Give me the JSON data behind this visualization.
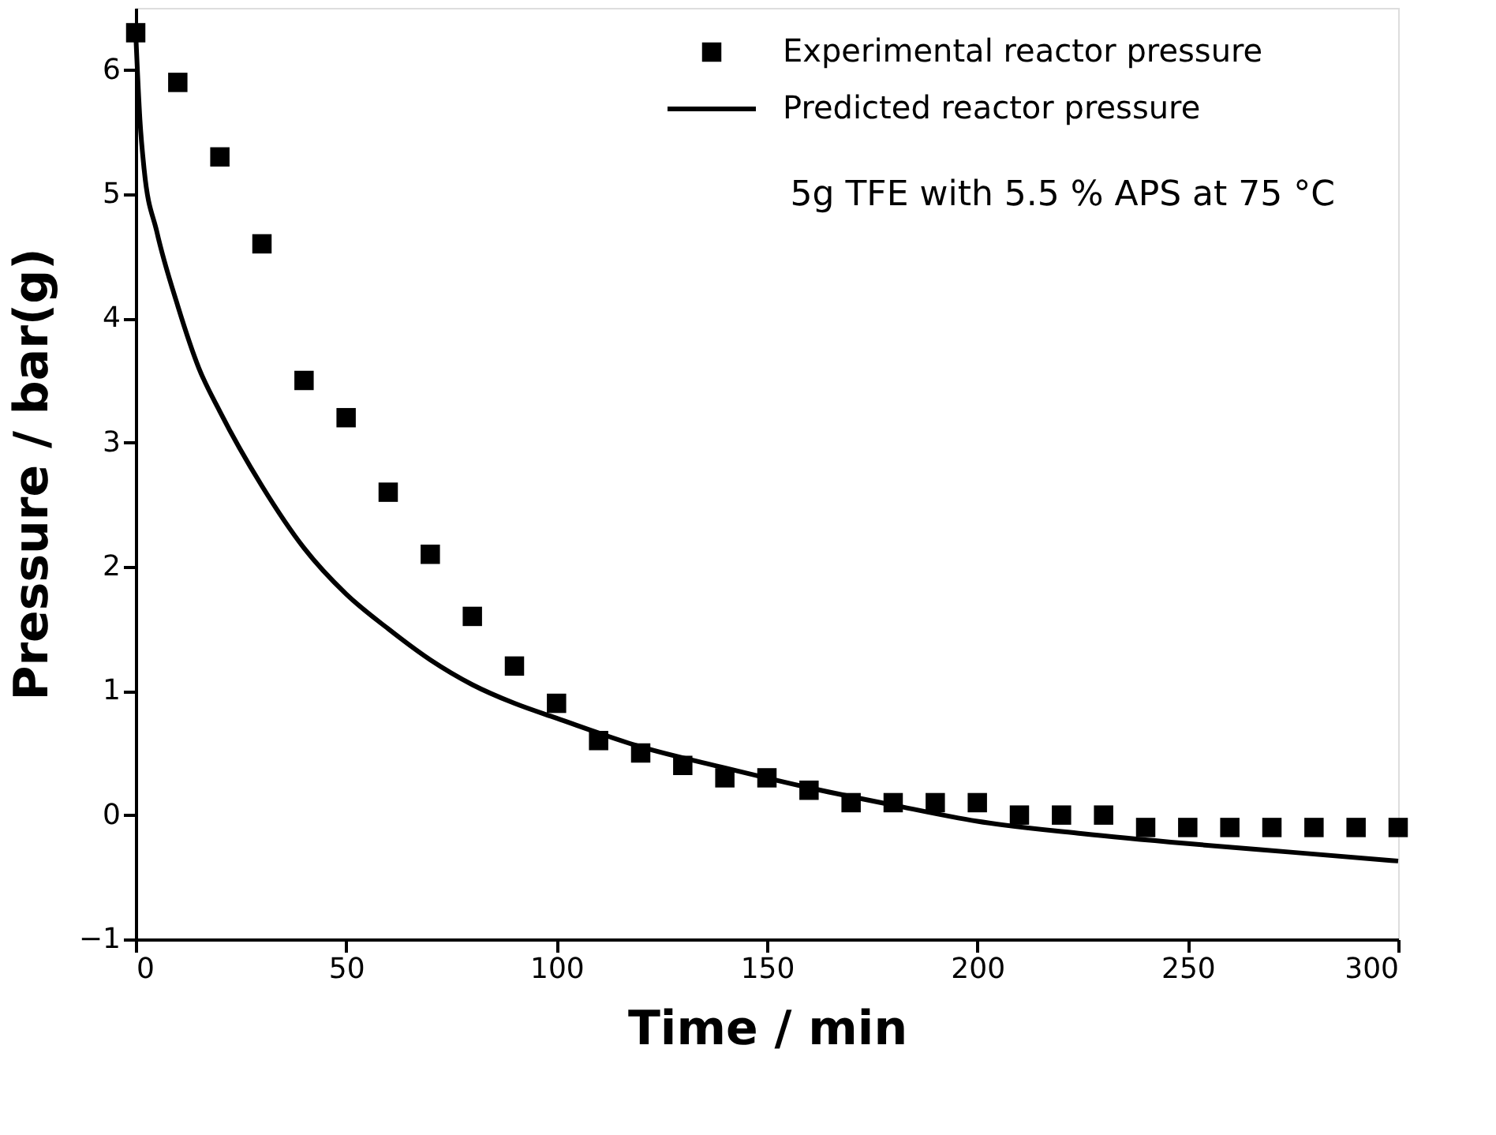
{
  "chart_data": {
    "type": "scatter",
    "xlabel": "Time / min",
    "ylabel": "Pressure / bar(g)",
    "xlim": [
      0,
      300
    ],
    "ylim": [
      -1,
      6.5
    ],
    "xticks": [
      0,
      50,
      100,
      150,
      200,
      250,
      300
    ],
    "yticks": [
      -1,
      0,
      1,
      2,
      3,
      4,
      5,
      6
    ],
    "grid": false,
    "legend": "top right",
    "annotations": [
      "5g TFE with 5.5 % APS at 75 °C"
    ],
    "series": [
      {
        "name": "Experimental reactor pressure",
        "type": "scatter",
        "marker": "square",
        "color": "#000000",
        "x": [
          0,
          10,
          20,
          30,
          40,
          50,
          60,
          70,
          80,
          90,
          100,
          110,
          120,
          130,
          140,
          150,
          160,
          170,
          180,
          190,
          200,
          210,
          220,
          230,
          240,
          250,
          260,
          270,
          280,
          290,
          300
        ],
        "values": [
          6.3,
          5.9,
          5.3,
          4.6,
          3.5,
          3.2,
          2.6,
          2.1,
          1.6,
          1.2,
          0.9,
          0.6,
          0.5,
          0.4,
          0.3,
          0.3,
          0.2,
          0.1,
          0.1,
          0.1,
          0.1,
          0,
          0,
          0,
          -0.1,
          -0.1,
          -0.1,
          -0.1,
          -0.1,
          -0.1,
          -0.1
        ]
      },
      {
        "name": "Predicted reactor pressure",
        "type": "line",
        "line_style": "solid",
        "color": "#000000",
        "x": [
          0,
          1,
          2,
          5,
          10,
          15,
          20,
          30,
          40,
          50,
          60,
          70,
          80,
          90,
          100,
          120,
          140,
          160,
          180,
          200,
          225,
          250,
          275,
          300
        ],
        "values": [
          6.3,
          5.6,
          5.2,
          4.7,
          4.1,
          3.6,
          3.25,
          2.65,
          2.15,
          1.78,
          1.5,
          1.25,
          1.05,
          0.9,
          0.78,
          0.55,
          0.38,
          0.22,
          0.08,
          -0.05,
          -0.15,
          -0.23,
          -0.3,
          -0.37
        ]
      }
    ]
  }
}
